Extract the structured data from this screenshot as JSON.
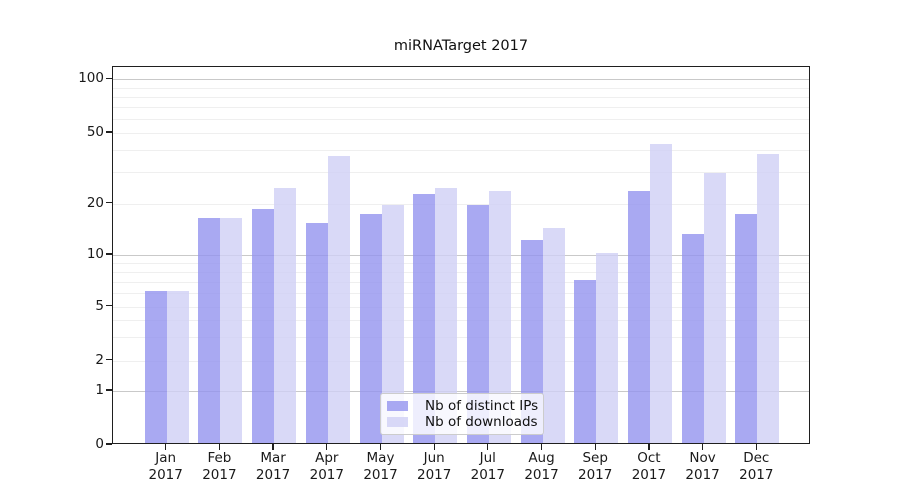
{
  "chart_data": {
    "type": "bar",
    "title": "miRNATarget 2017",
    "categories": [
      "Jan",
      "Feb",
      "Mar",
      "Apr",
      "May",
      "Jun",
      "Jul",
      "Aug",
      "Sep",
      "Oct",
      "Nov",
      "Dec"
    ],
    "category_year": "2017",
    "series": [
      {
        "name": "Nb of distinct IPs",
        "color": "rgba(148,148,239,0.8)",
        "values": [
          6,
          16,
          18,
          15,
          17,
          22,
          19,
          12,
          7,
          23,
          13,
          17
        ]
      },
      {
        "name": "Nb of downloads",
        "color": "rgba(208,208,245,0.8)",
        "values": [
          6,
          16,
          24,
          36,
          19,
          24,
          23,
          14,
          10,
          42,
          29,
          37
        ]
      }
    ],
    "y_axis": {
      "scale": "symlog",
      "tick_values": [
        0,
        1,
        2,
        5,
        10,
        20,
        50,
        100
      ],
      "tick_labels": [
        "0",
        "1",
        "2",
        "5",
        "10",
        "20",
        "50",
        "100"
      ],
      "major_grid_values": [
        1,
        10,
        100
      ],
      "minor_grid_values": [
        2,
        3,
        4,
        5,
        6,
        7,
        8,
        9,
        20,
        30,
        40,
        50,
        60,
        70,
        80,
        90
      ],
      "ylim": [
        0,
        130
      ]
    },
    "legend": {
      "position": "lower center"
    },
    "grid": "on"
  },
  "colors": {
    "background": "#ffffff",
    "axis_border": "#1f1f1f",
    "grid_major": "#c9c9c9",
    "grid_minor": "#efefef",
    "text": "#1a1a1a",
    "legend_border": "#cccccc",
    "legend_background": "rgba(255,255,255,0.8)"
  }
}
